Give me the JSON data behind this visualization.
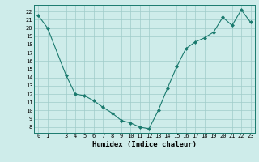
{
  "xlabel": "Humidex (Indice chaleur)",
  "x": [
    0,
    1,
    3,
    4,
    5,
    6,
    7,
    8,
    9,
    10,
    11,
    12,
    13,
    14,
    15,
    16,
    17,
    18,
    19,
    20,
    21,
    22,
    23
  ],
  "y": [
    21.5,
    20.0,
    14.3,
    12.0,
    11.8,
    11.2,
    10.4,
    9.7,
    8.8,
    8.5,
    8.0,
    7.8,
    10.0,
    12.7,
    15.3,
    17.5,
    18.3,
    18.8,
    19.5,
    21.3,
    20.3,
    22.2,
    20.7
  ],
  "line_color": "#1a7a6e",
  "marker": "D",
  "marker_size": 2.0,
  "bg_color": "#ceecea",
  "grid_color": "#a0ccca",
  "ylim": [
    7.3,
    22.8
  ],
  "xlim": [
    -0.5,
    23.5
  ],
  "yticks": [
    8,
    9,
    10,
    11,
    12,
    13,
    14,
    15,
    16,
    17,
    18,
    19,
    20,
    21,
    22
  ],
  "xticks": [
    0,
    1,
    3,
    4,
    5,
    6,
    7,
    8,
    9,
    10,
    11,
    12,
    13,
    14,
    15,
    16,
    17,
    18,
    19,
    20,
    21,
    22,
    23
  ],
  "tick_fontsize": 5.0,
  "label_fontsize": 6.5
}
